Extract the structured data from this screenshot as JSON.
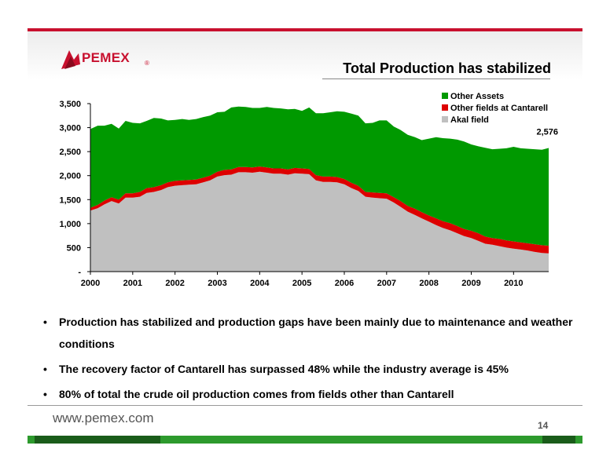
{
  "brand": {
    "name": "PEMEX",
    "reg_mark": "®",
    "url": "www.pemex.com"
  },
  "slide": {
    "title": "Total Production has stabilized",
    "page": "14"
  },
  "bullets": [
    "Production has stabilized and production gaps have been mainly due to maintenance and weather conditions",
    "The recovery factor of Cantarell has surpassed 48% while the industry average is 45%",
    "80% of total the crude oil production comes from fields other than Cantarell"
  ],
  "colors": {
    "akal": "#c0c0c0",
    "cantarell_other": "#dd0000",
    "other_assets": "#009900",
    "brand_red": "#c8102e"
  },
  "chart_data": {
    "type": "area",
    "stacked": true,
    "ylim": [
      0,
      3500
    ],
    "y_ticks": [
      0,
      500,
      1000,
      1500,
      2000,
      2500,
      3000,
      3500
    ],
    "y_tick_labels": [
      "-",
      "500",
      "1,000",
      "1,500",
      "2,000",
      "2,500",
      "3,000",
      "3,500"
    ],
    "x_tick_labels": [
      "2000",
      "2001",
      "2002",
      "2003",
      "2004",
      "2005",
      "2006",
      "2007",
      "2008",
      "2009",
      "2010"
    ],
    "xlim": [
      2000,
      2010.83
    ],
    "legend_position": "top-right",
    "annotation": {
      "label": "2,576",
      "x": 2010.83,
      "value": 2576
    },
    "x": [
      2000.0,
      2000.17,
      2000.33,
      2000.5,
      2000.67,
      2000.83,
      2001.0,
      2001.17,
      2001.33,
      2001.5,
      2001.67,
      2001.83,
      2002.0,
      2002.17,
      2002.33,
      2002.5,
      2002.67,
      2002.83,
      2003.0,
      2003.17,
      2003.33,
      2003.5,
      2003.67,
      2003.83,
      2004.0,
      2004.17,
      2004.33,
      2004.5,
      2004.67,
      2004.83,
      2005.0,
      2005.17,
      2005.33,
      2005.5,
      2005.67,
      2005.83,
      2006.0,
      2006.17,
      2006.33,
      2006.5,
      2006.67,
      2006.83,
      2007.0,
      2007.17,
      2007.33,
      2007.5,
      2007.67,
      2007.83,
      2008.0,
      2008.17,
      2008.33,
      2008.5,
      2008.67,
      2008.83,
      2009.0,
      2009.17,
      2009.33,
      2009.5,
      2009.67,
      2009.83,
      2010.0,
      2010.17,
      2010.33,
      2010.5,
      2010.67,
      2010.83
    ],
    "series": [
      {
        "name": "Akal field",
        "color": "#c0c0c0",
        "values": [
          1270,
          1320,
          1400,
          1470,
          1420,
          1540,
          1540,
          1560,
          1640,
          1660,
          1700,
          1760,
          1790,
          1800,
          1810,
          1820,
          1860,
          1900,
          1980,
          2010,
          2020,
          2070,
          2070,
          2060,
          2080,
          2060,
          2040,
          2040,
          2020,
          2050,
          2040,
          2030,
          1900,
          1870,
          1870,
          1860,
          1820,
          1740,
          1680,
          1560,
          1540,
          1530,
          1520,
          1440,
          1350,
          1250,
          1180,
          1110,
          1040,
          970,
          910,
          860,
          800,
          740,
          700,
          640,
          580,
          560,
          530,
          500,
          480,
          460,
          440,
          410,
          390,
          380
        ]
      },
      {
        "name": "Other fields at Cantarell",
        "color": "#dd0000",
        "values": [
          60,
          70,
          80,
          80,
          80,
          90,
          90,
          100,
          100,
          100,
          100,
          100,
          100,
          100,
          100,
          100,
          100,
          100,
          100,
          110,
          110,
          110,
          110,
          110,
          110,
          110,
          110,
          110,
          110,
          110,
          110,
          110,
          110,
          110,
          110,
          110,
          110,
          110,
          110,
          100,
          110,
          110,
          110,
          110,
          120,
          120,
          130,
          130,
          130,
          140,
          140,
          150,
          150,
          150,
          150,
          160,
          150,
          140,
          150,
          150,
          150,
          150,
          150,
          160,
          160,
          160
        ]
      },
      {
        "name": "Other Assets",
        "color": "#009900",
        "values": [
          1640,
          1650,
          1560,
          1530,
          1480,
          1510,
          1470,
          1430,
          1400,
          1440,
          1390,
          1290,
          1270,
          1280,
          1250,
          1260,
          1260,
          1250,
          1240,
          1210,
          1290,
          1260,
          1250,
          1240,
          1220,
          1260,
          1260,
          1250,
          1250,
          1230,
          1200,
          1280,
          1290,
          1320,
          1340,
          1370,
          1400,
          1440,
          1460,
          1430,
          1450,
          1510,
          1520,
          1470,
          1480,
          1480,
          1490,
          1500,
          1600,
          1690,
          1730,
          1760,
          1800,
          1820,
          1800,
          1810,
          1850,
          1850,
          1880,
          1920,
          1970,
          1960,
          1970,
          1980,
          1990,
          2036
        ]
      }
    ]
  }
}
